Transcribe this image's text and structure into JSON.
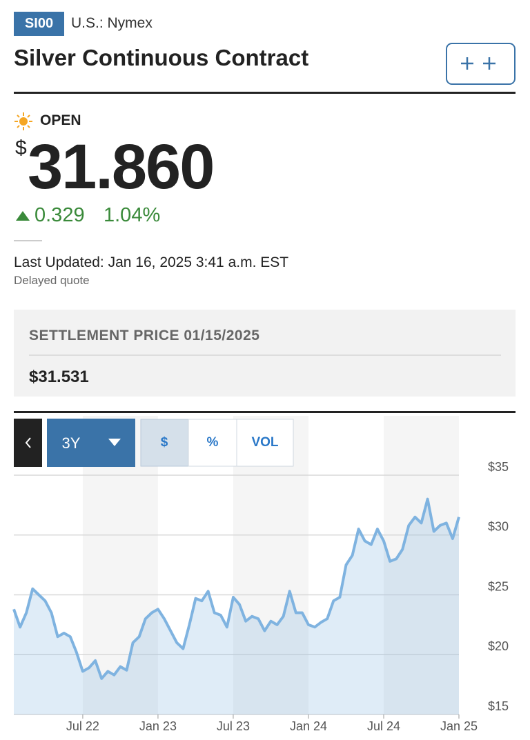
{
  "header": {
    "symbol": "SI00",
    "exchange": "U.S.: Nymex",
    "title": "Silver Continuous Contract"
  },
  "quote": {
    "status": "OPEN",
    "currency": "$",
    "price": "31.860",
    "change": "0.329",
    "change_percent": "1.04%",
    "last_updated": "Last Updated: Jan 16, 2025 3:41 a.m. EST",
    "delay_note": "Delayed quote"
  },
  "settlement": {
    "label": "SETTLEMENT PRICE 01/15/2025",
    "price": "$31.531"
  },
  "controls": {
    "range": "3Y",
    "buttons": [
      "$",
      "%",
      "VOL"
    ]
  },
  "chart_data": {
    "type": "line",
    "area": true,
    "color": "#7fb3e0",
    "categories": [
      null,
      null,
      null,
      null,
      null,
      null,
      null,
      null,
      null,
      null,
      null,
      "Jul 22",
      null,
      null,
      null,
      null,
      null,
      null,
      null,
      null,
      null,
      null,
      null,
      "Jan 23",
      null,
      null,
      null,
      null,
      null,
      null,
      null,
      null,
      null,
      null,
      null,
      "Jul 23",
      null,
      null,
      null,
      null,
      null,
      null,
      null,
      null,
      null,
      null,
      null,
      "Jan 24",
      null,
      null,
      null,
      null,
      null,
      null,
      null,
      null,
      null,
      null,
      null,
      "Jul 24",
      null,
      null,
      null,
      null,
      null,
      null,
      null,
      null,
      null,
      null,
      null,
      "Jan 25"
    ],
    "values": [
      23.8,
      22.3,
      23.5,
      25.5,
      25.0,
      24.5,
      23.5,
      21.5,
      21.8,
      21.5,
      20.2,
      18.6,
      18.9,
      19.5,
      18.0,
      18.6,
      18.3,
      19.0,
      18.7,
      21.0,
      21.5,
      23.0,
      23.5,
      23.8,
      23.0,
      22.0,
      21.0,
      20.5,
      22.5,
      24.7,
      24.5,
      25.3,
      23.5,
      23.3,
      22.3,
      24.8,
      24.2,
      22.8,
      23.2,
      23.0,
      22.0,
      22.8,
      22.5,
      23.2,
      25.3,
      23.5,
      23.5,
      22.5,
      22.3,
      22.7,
      23.0,
      24.5,
      24.8,
      27.5,
      28.3,
      30.5,
      29.5,
      29.2,
      30.5,
      29.5,
      27.8,
      28.0,
      28.8,
      30.8,
      31.5,
      31.0,
      33.0,
      30.3,
      30.8,
      31.0,
      29.7,
      31.5
    ],
    "ylim": [
      15,
      35
    ],
    "yticks": [
      {
        "value": 15,
        "label": "$15"
      },
      {
        "value": 20,
        "label": "$20"
      },
      {
        "value": 25,
        "label": "$25"
      },
      {
        "value": 30,
        "label": "$30"
      },
      {
        "value": 35,
        "label": "$35"
      }
    ],
    "grid": true
  }
}
